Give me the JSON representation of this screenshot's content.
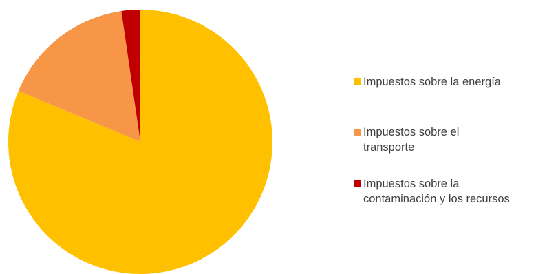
{
  "chart_data": {
    "type": "pie",
    "title": "",
    "categories": [
      "Impuestos sobre la energía",
      "Impuestos sobre el\ntransporte",
      "Impuestos sobre la\ncontaminación y los recursos"
    ],
    "values": [
      81.3,
      16.4,
      2.3
    ],
    "colors": [
      "#FFC000",
      "#F79646",
      "#C00000"
    ],
    "start_angle_deg": 0,
    "direction": "clockwise",
    "legend_position": "right"
  }
}
